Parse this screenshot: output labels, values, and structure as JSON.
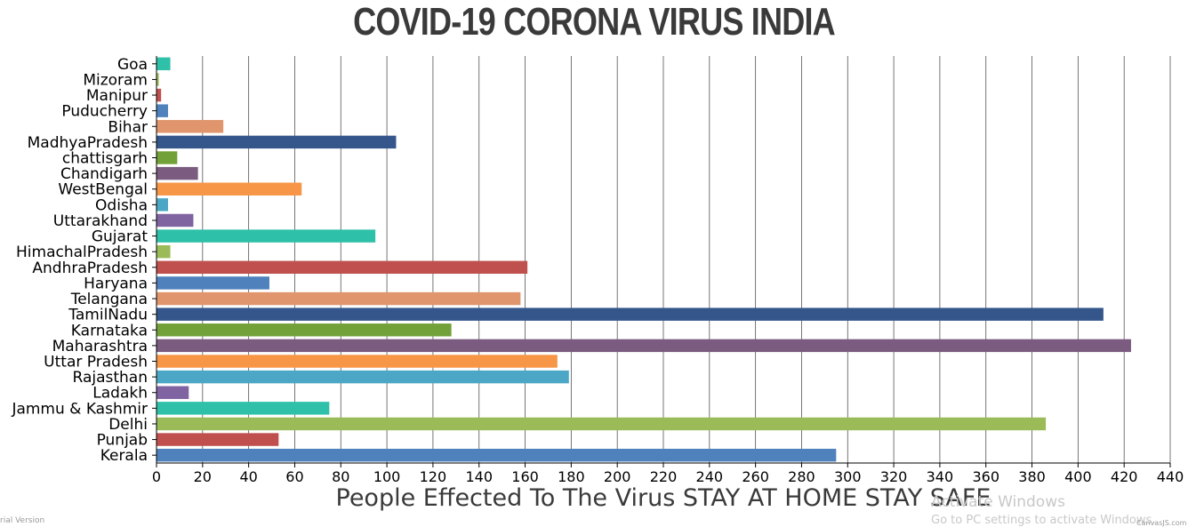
{
  "chart_data": {
    "type": "bar",
    "orientation": "horizontal",
    "title": "COVID-19 CORONA VIRUS INDIA",
    "xlabel": "People Effected To The Virus STAY AT HOME STAY SAFE",
    "ylabel": "",
    "xlim": [
      0,
      440
    ],
    "x_ticks": [
      0,
      20,
      40,
      60,
      80,
      100,
      120,
      140,
      160,
      180,
      200,
      220,
      240,
      260,
      280,
      300,
      320,
      340,
      360,
      380,
      400,
      420,
      440
    ],
    "grid": "vertical",
    "categories": [
      "Goa",
      "Mizoram",
      "Manipur",
      "Puducherry",
      "Bihar",
      "MadhyaPradesh",
      "chattisgarh",
      "Chandigarh",
      "WestBengal",
      "Odisha",
      "Uttarakhand",
      "Gujarat",
      "HimachalPradesh",
      "AndhraPradesh",
      "Haryana",
      "Telangana",
      "TamilNadu",
      "Karnataka",
      "Maharashtra",
      "Uttar Pradesh",
      "Rajasthan",
      "Ladakh",
      "Jammu & Kashmir",
      "Delhi",
      "Punjab",
      "Kerala"
    ],
    "values": [
      6,
      1,
      2,
      5,
      29,
      104,
      9,
      18,
      63,
      5,
      16,
      95,
      6,
      161,
      49,
      158,
      411,
      128,
      423,
      174,
      179,
      14,
      75,
      386,
      53,
      295
    ],
    "colors": [
      "#2ec0a8",
      "#9ebd5c",
      "#c24f4f",
      "#4f81bd",
      "#e0956c",
      "#34568b",
      "#73a139",
      "#7b5c80",
      "#f79646",
      "#4ba7c5",
      "#8064a2",
      "#2ec0a8",
      "#9bbb59",
      "#c0504d",
      "#4f81bd",
      "#e0956c",
      "#34568b",
      "#73a139",
      "#7b5c80",
      "#f79646",
      "#4ba7c5",
      "#8064a2",
      "#2ec0a8",
      "#9bbb59",
      "#c0504d",
      "#4f81bd"
    ]
  },
  "watermarks": {
    "trial": "rial Version",
    "activate_title": "Activate Windows",
    "activate_sub": "Go to PC settings to activate Windows.",
    "canvasjs": "CanvasJS.com"
  }
}
